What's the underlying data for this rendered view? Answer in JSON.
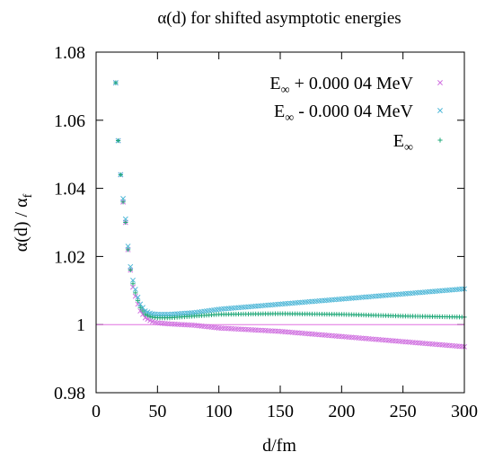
{
  "chart_data": {
    "type": "scatter",
    "title": "α(d) for shifted asymptotic energies",
    "xlabel": "d/fm",
    "ylabel_main": "α(d) / α",
    "ylabel_sub": "f",
    "xlim": [
      0,
      300
    ],
    "ylim": [
      0.98,
      1.08
    ],
    "xticks": [
      0,
      50,
      100,
      150,
      200,
      250,
      300
    ],
    "xtick_labels": [
      "0",
      "50",
      "100",
      "150",
      "200",
      "250",
      "300"
    ],
    "yticks": [
      0.98,
      1.0,
      1.02,
      1.04,
      1.06,
      1.08
    ],
    "ytick_labels": [
      "0.98",
      "1",
      "1.02",
      "1.04",
      "1.06",
      "1.08"
    ],
    "reference_line": {
      "y": 1.0,
      "color": "#e070e0"
    },
    "legend_position": "top-right",
    "grid": false,
    "series": [
      {
        "name": "E∞ + 0.000 04 MeV",
        "legend_main": "E",
        "legend_sub": "∞",
        "legend_rest": " + 0.000 04 MeV",
        "marker": "x",
        "color": "#d070e0",
        "keypoints": [
          [
            16,
            1.071
          ],
          [
            18,
            1.054
          ],
          [
            20,
            1.044
          ],
          [
            22,
            1.036
          ],
          [
            24,
            1.03
          ],
          [
            26,
            1.022
          ],
          [
            28,
            1.016
          ],
          [
            30,
            1.011
          ],
          [
            33,
            1.007
          ],
          [
            36,
            1.004
          ],
          [
            40,
            1.002
          ],
          [
            45,
            1.001
          ],
          [
            50,
            1.0005
          ],
          [
            60,
            1.0002
          ],
          [
            80,
            0.9998
          ],
          [
            100,
            0.999
          ],
          [
            150,
            0.998
          ],
          [
            200,
            0.9965
          ],
          [
            250,
            0.995
          ],
          [
            300,
            0.9935
          ]
        ]
      },
      {
        "name": "E∞ - 0.000 04 MeV",
        "legend_main": "E",
        "legend_sub": "∞",
        "legend_rest": " - 0.000 04 MeV",
        "marker": "x",
        "color": "#50b8d8",
        "keypoints": [
          [
            16,
            1.071
          ],
          [
            18,
            1.054
          ],
          [
            20,
            1.044
          ],
          [
            22,
            1.037
          ],
          [
            24,
            1.031
          ],
          [
            26,
            1.023
          ],
          [
            28,
            1.017
          ],
          [
            30,
            1.013
          ],
          [
            33,
            1.009
          ],
          [
            36,
            1.006
          ],
          [
            40,
            1.004
          ],
          [
            45,
            1.0032
          ],
          [
            50,
            1.003
          ],
          [
            60,
            1.003
          ],
          [
            80,
            1.0035
          ],
          [
            100,
            1.0045
          ],
          [
            150,
            1.006
          ],
          [
            200,
            1.0075
          ],
          [
            250,
            1.009
          ],
          [
            300,
            1.0105
          ]
        ]
      },
      {
        "name": "E∞",
        "legend_main": "E",
        "legend_sub": "∞",
        "legend_rest": "",
        "marker": "+",
        "color": "#20a878",
        "keypoints": [
          [
            16,
            1.071
          ],
          [
            18,
            1.054
          ],
          [
            20,
            1.044
          ],
          [
            22,
            1.036
          ],
          [
            24,
            1.03
          ],
          [
            26,
            1.022
          ],
          [
            28,
            1.016
          ],
          [
            30,
            1.012
          ],
          [
            33,
            1.008
          ],
          [
            36,
            1.005
          ],
          [
            40,
            1.003
          ],
          [
            45,
            1.0022
          ],
          [
            50,
            1.002
          ],
          [
            60,
            1.002
          ],
          [
            80,
            1.0025
          ],
          [
            100,
            1.003
          ],
          [
            150,
            1.0032
          ],
          [
            200,
            1.003
          ],
          [
            250,
            1.0025
          ],
          [
            300,
            1.0022
          ]
        ]
      }
    ]
  }
}
